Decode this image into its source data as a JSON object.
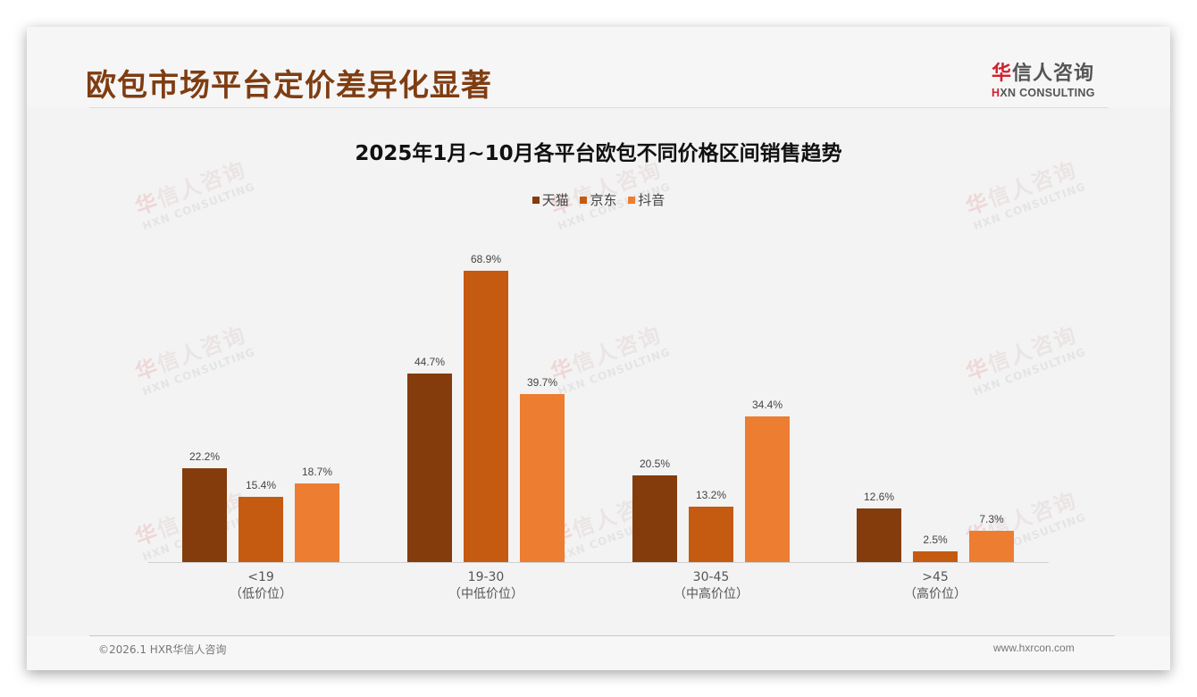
{
  "header": {
    "title": "欧包市场平台定价差异化显著",
    "logo": {
      "cn_accent": "华",
      "cn_rest": "信人咨询",
      "en_accent": "H",
      "en_rest": "XN CONSULTING"
    }
  },
  "watermark": {
    "cn_accent": "华",
    "cn_rest": "信人咨询",
    "en": "HXN CONSULTING"
  },
  "footer": {
    "copyright": "©2026.1 HXR华信人咨询",
    "website": "www.hxrcon.com"
  },
  "colors": {
    "tmall": "#843c0c",
    "jd": "#c55a11",
    "douyin": "#ed7d31",
    "title": "#7f3d12",
    "logo_accent": "#d0202e"
  },
  "chart_data": {
    "type": "bar",
    "title": "2025年1月~10月各平台欧包不同价格区间销售趋势",
    "xlabel": "",
    "ylabel": "",
    "ylim": [
      0,
      75
    ],
    "grid": false,
    "legend_position": "top",
    "categories": [
      "<19\n（低价位）",
      "19-30\n（中低价位）",
      "30-45\n（中高价位）",
      ">45\n（高价位）"
    ],
    "category_labels": [
      {
        "range": "<19",
        "tier": "（低价位）"
      },
      {
        "range": "19-30",
        "tier": "（中低价位）"
      },
      {
        "range": "30-45",
        "tier": "（中高价位）"
      },
      {
        "range": ">45",
        "tier": "（高价位）"
      }
    ],
    "series": [
      {
        "name": "天猫",
        "color": "#843c0c",
        "values": [
          22.2,
          44.7,
          20.5,
          12.6
        ],
        "labels": [
          "22.2%",
          "44.7%",
          "20.5%",
          "12.6%"
        ]
      },
      {
        "name": "京东",
        "color": "#c55a11",
        "values": [
          15.4,
          68.9,
          13.2,
          2.5
        ],
        "labels": [
          "15.4%",
          "68.9%",
          "13.2%",
          "2.5%"
        ]
      },
      {
        "name": "抖音",
        "color": "#ed7d31",
        "values": [
          18.7,
          39.7,
          34.4,
          7.3
        ],
        "labels": [
          "18.7%",
          "39.7%",
          "34.4%",
          "7.3%"
        ]
      }
    ]
  }
}
